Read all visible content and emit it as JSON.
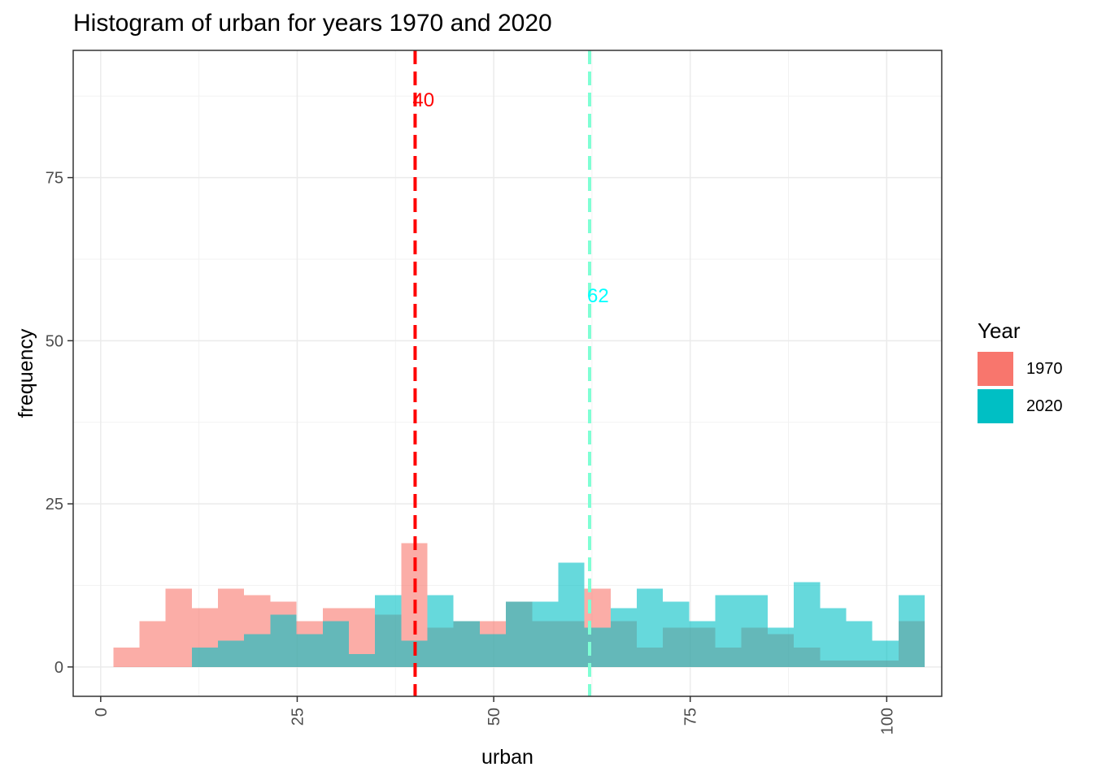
{
  "chart_data": {
    "type": "bar",
    "title": "Histogram of urban for years 1970 and 2020",
    "xlabel": "urban",
    "ylabel": "frequency",
    "xlim": [
      -3.5,
      107
    ],
    "ylim": [
      -4.5,
      94.5
    ],
    "x_ticks": [
      0,
      25,
      50,
      75,
      100
    ],
    "x_tick_labels": [
      "0",
      "25",
      "50",
      "75",
      "100"
    ],
    "y_ticks": [
      0,
      25,
      50,
      75
    ],
    "y_tick_labels": [
      "0",
      "25",
      "50",
      "75"
    ],
    "grid": true,
    "legend": {
      "title": "Year",
      "position": "right"
    },
    "bin_width": 3.33,
    "bin_start": 1.6,
    "series": [
      {
        "name": "1970",
        "color": "#F8766D",
        "values": [
          3,
          7,
          12,
          9,
          12,
          11,
          10,
          7,
          9,
          9,
          8,
          19,
          6,
          7,
          7,
          10,
          7,
          7,
          12,
          7,
          3,
          6,
          6,
          3,
          6,
          5,
          3,
          1,
          1,
          1,
          7
        ]
      },
      {
        "name": "2020",
        "color": "#00BFC4",
        "values": [
          0,
          0,
          0,
          3,
          4,
          5,
          8,
          5,
          7,
          2,
          11,
          4,
          11,
          7,
          5,
          10,
          10,
          16,
          6,
          9,
          12,
          10,
          7,
          11,
          11,
          6,
          13,
          9,
          7,
          4,
          11
        ]
      }
    ],
    "vlines": [
      {
        "year": "1970",
        "x": 40,
        "label": "40",
        "color": "#FF0000",
        "label_y": 87
      },
      {
        "year": "2020",
        "x": 62.2,
        "label": "62",
        "color": "#00FFFF",
        "line_color": "#7FFFD4",
        "label_y": 57
      }
    ]
  }
}
